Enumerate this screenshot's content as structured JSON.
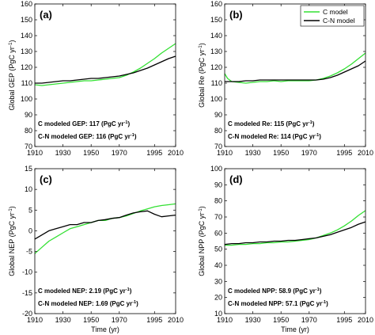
{
  "colors": {
    "c_model": "#33e033",
    "cn_model": "#000000"
  },
  "legend": {
    "c_label": "C model",
    "cn_label": "C-N model",
    "placement": "top-right of panel (b)"
  },
  "chart_data": [
    {
      "type": "line",
      "panel": "(a)",
      "xlabel": "",
      "ylabel": "Global GEP (PgC yr⁻¹)",
      "xlim": [
        1910,
        2010
      ],
      "ylim": [
        70,
        160
      ],
      "xticks": [
        1910,
        1930,
        1950,
        1970,
        1995,
        2010
      ],
      "xtick_labels": [
        "1910",
        "1930",
        "1950",
        "1970",
        "1995",
        "2010"
      ],
      "yticks": [
        70,
        80,
        90,
        100,
        110,
        120,
        130,
        140,
        150,
        160
      ],
      "ytick_labels": [
        "70",
        "80",
        "90",
        "100",
        "110",
        "120",
        "130",
        "140",
        "150",
        "160"
      ],
      "annotations": [
        "C  modeled GEP: 117 (PgC yr⁻¹)",
        "C-N modeled GEP: 116 (PgC yr⁻¹)"
      ],
      "series": [
        {
          "name": "C model",
          "color": "#33e033",
          "x": [
            1910,
            1915,
            1920,
            1925,
            1930,
            1935,
            1940,
            1945,
            1950,
            1955,
            1960,
            1965,
            1970,
            1975,
            1980,
            1985,
            1990,
            1995,
            2000,
            2005,
            2010
          ],
          "y": [
            109,
            108.5,
            109,
            109.5,
            110,
            110.5,
            111,
            111.5,
            111.5,
            112,
            112.5,
            113,
            113.5,
            115,
            117,
            119.5,
            122.5,
            125.5,
            129,
            132,
            135
          ]
        },
        {
          "name": "C-N model",
          "color": "#000000",
          "x": [
            1910,
            1915,
            1920,
            1925,
            1930,
            1935,
            1940,
            1945,
            1950,
            1955,
            1960,
            1965,
            1970,
            1975,
            1980,
            1985,
            1990,
            1995,
            2000,
            2005,
            2010
          ],
          "y": [
            110,
            110,
            110.5,
            111,
            111.5,
            111.5,
            112,
            112.5,
            113,
            113,
            113.5,
            114,
            114.5,
            115.5,
            116.5,
            118,
            119.5,
            121.5,
            123.5,
            125.5,
            127
          ]
        }
      ]
    },
    {
      "type": "line",
      "panel": "(b)",
      "xlabel": "",
      "ylabel": "Global Re (PgC yr⁻¹)",
      "xlim": [
        1910,
        2010
      ],
      "ylim": [
        70,
        160
      ],
      "xticks": [
        1910,
        1930,
        1950,
        1970,
        1995,
        2010
      ],
      "xtick_labels": [
        "1910",
        "1930",
        "1950",
        "1970",
        "1995",
        "2010"
      ],
      "yticks": [
        70,
        80,
        90,
        100,
        110,
        120,
        130,
        140,
        150,
        160
      ],
      "ytick_labels": [
        "70",
        "80",
        "90",
        "100",
        "110",
        "120",
        "130",
        "140",
        "150",
        "160"
      ],
      "annotations": [
        "C   modeled Re: 115 (PgC yr⁻¹)",
        "C-N modeled Re: 114 (PgC yr⁻¹)"
      ],
      "series": [
        {
          "name": "C model",
          "color": "#33e033",
          "x": [
            1910,
            1912,
            1915,
            1920,
            1925,
            1930,
            1935,
            1940,
            1945,
            1950,
            1955,
            1960,
            1965,
            1970,
            1975,
            1980,
            1985,
            1990,
            1995,
            2000,
            2005,
            2010
          ],
          "y": [
            116,
            113,
            111,
            110.5,
            110,
            110.5,
            111,
            111,
            111.5,
            111,
            111.5,
            111.5,
            111.5,
            111.5,
            112,
            113,
            114.5,
            116.5,
            119,
            122,
            125.5,
            129
          ]
        },
        {
          "name": "C-N model",
          "color": "#000000",
          "x": [
            1910,
            1915,
            1920,
            1925,
            1930,
            1935,
            1940,
            1945,
            1950,
            1955,
            1960,
            1965,
            1970,
            1975,
            1980,
            1985,
            1990,
            1995,
            2000,
            2005,
            2010
          ],
          "y": [
            111,
            111,
            111,
            111.5,
            111.5,
            112,
            112,
            112,
            112,
            112,
            112,
            112,
            112,
            112,
            112.5,
            113.5,
            115,
            117,
            119,
            121,
            124
          ]
        }
      ]
    },
    {
      "type": "line",
      "panel": "(c)",
      "xlabel": "Time (yr)",
      "ylabel": "Global NEP (PgC yr⁻¹)",
      "xlim": [
        1910,
        2010
      ],
      "ylim": [
        -20,
        15
      ],
      "xticks": [
        1910,
        1930,
        1950,
        1970,
        1995,
        2010
      ],
      "xtick_labels": [
        "1910",
        "1930",
        "1950",
        "1970",
        "1995",
        "2010"
      ],
      "yticks": [
        -20,
        -15,
        -10,
        -5,
        0,
        5,
        10,
        15
      ],
      "ytick_labels": [
        "-20",
        "-15",
        "-10",
        "-5",
        "0",
        "5",
        "10",
        "15"
      ],
      "annotations": [
        "C   modeled NEP: 2.19 (PgC yr⁻¹)",
        "C-N modeled NEP: 1.69 (PgC yr⁻¹)"
      ],
      "series": [
        {
          "name": "C model",
          "color": "#33e033",
          "x": [
            1910,
            1915,
            1920,
            1925,
            1930,
            1935,
            1940,
            1945,
            1950,
            1955,
            1960,
            1965,
            1970,
            1975,
            1980,
            1985,
            1990,
            1995,
            2000,
            2005,
            2010
          ],
          "y": [
            -5.5,
            -4,
            -2.5,
            -1.5,
            -0.5,
            0.5,
            1,
            1.5,
            2,
            2.5,
            2.5,
            3,
            3.2,
            3.6,
            4.2,
            4.8,
            5.3,
            5.8,
            6.1,
            6.3,
            6.5
          ]
        },
        {
          "name": "C-N model",
          "color": "#000000",
          "x": [
            1910,
            1915,
            1920,
            1925,
            1930,
            1935,
            1940,
            1945,
            1950,
            1955,
            1960,
            1965,
            1970,
            1975,
            1980,
            1985,
            1990,
            1995,
            2000,
            2005,
            2010
          ],
          "y": [
            -2,
            -1,
            0,
            0.5,
            1,
            1.5,
            1.5,
            2,
            2,
            2.5,
            2.7,
            3,
            3.2,
            3.8,
            4.3,
            4.6,
            4.8,
            4,
            3.4,
            3.6,
            3.8
          ]
        }
      ]
    },
    {
      "type": "line",
      "panel": "(d)",
      "xlabel": "Time (yr)",
      "ylabel": "Global NPP (PgC yr⁻¹)",
      "xlim": [
        1910,
        2010
      ],
      "ylim": [
        10,
        100
      ],
      "xticks": [
        1910,
        1930,
        1950,
        1970,
        1995,
        2010
      ],
      "xtick_labels": [
        "1910",
        "1930",
        "1950",
        "1970",
        "1995",
        "2010"
      ],
      "yticks": [
        10,
        20,
        30,
        40,
        50,
        60,
        70,
        80,
        90,
        100
      ],
      "ytick_labels": [
        "10",
        "20",
        "30",
        "40",
        "50",
        "60",
        "70",
        "80",
        "90",
        "100"
      ],
      "annotations": [
        "C   modeled NPP: 58.9 (PgC yr⁻¹)",
        "C-N modeled NPP: 57.1 (PgC yr⁻¹)"
      ],
      "series": [
        {
          "name": "C model",
          "color": "#33e033",
          "x": [
            1910,
            1915,
            1920,
            1925,
            1930,
            1935,
            1940,
            1945,
            1950,
            1955,
            1960,
            1965,
            1970,
            1975,
            1980,
            1985,
            1990,
            1995,
            2000,
            2005,
            2010
          ],
          "y": [
            52.5,
            52.5,
            53,
            53,
            53.5,
            53.5,
            54,
            54,
            54.5,
            54.5,
            55,
            55.5,
            56,
            57,
            58.5,
            60,
            62,
            64.5,
            67.5,
            71,
            74
          ]
        },
        {
          "name": "C-N model",
          "color": "#000000",
          "x": [
            1910,
            1915,
            1920,
            1925,
            1930,
            1935,
            1940,
            1945,
            1950,
            1955,
            1960,
            1965,
            1970,
            1975,
            1980,
            1985,
            1990,
            1995,
            2000,
            2005,
            2010
          ],
          "y": [
            53,
            53.5,
            53.5,
            54,
            54,
            54.5,
            54.5,
            55,
            55,
            55.5,
            55.5,
            56,
            56.5,
            57,
            58,
            59,
            60.5,
            62,
            63.5,
            65.5,
            67
          ]
        }
      ]
    }
  ]
}
